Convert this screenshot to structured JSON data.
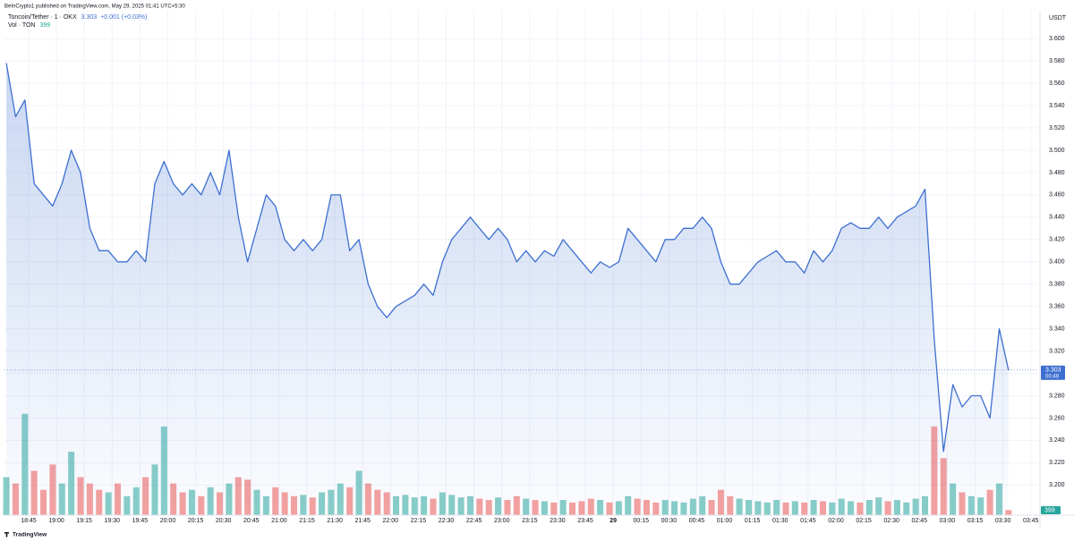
{
  "header": {
    "publisher": "BeInCrypto1 published on TradingView.com, May 29, 2025 01:41 UTC+5:30",
    "logo": "TradingView"
  },
  "chart_data": {
    "type": "area",
    "symbol": "Toncoin/Tether · 1 · OKX",
    "change": "+0.001 (+0.03%)",
    "volume_title": "Vol · TON",
    "currency": "USDT",
    "countdown": "00:49",
    "color": "#3d6fd0",
    "up_color": "#26a69a",
    "down_color": "#ef5350",
    "x": [
      33,
      38,
      43,
      48,
      53,
      58,
      63,
      68,
      73,
      78,
      83,
      88,
      93,
      98,
      103,
      108,
      113,
      118,
      123,
      128,
      133,
      138,
      143,
      148,
      153,
      158,
      163,
      168,
      173,
      178,
      183,
      188,
      193,
      198,
      203,
      208,
      213,
      218,
      223,
      228,
      233,
      238,
      243,
      248,
      253,
      258,
      263,
      268,
      273,
      278,
      283,
      288,
      293,
      298,
      303,
      308,
      313,
      318,
      323,
      328,
      333,
      338,
      343,
      348,
      353,
      358,
      363,
      368,
      373,
      378,
      383,
      388,
      393,
      398,
      403,
      408,
      413,
      418,
      423,
      428,
      433,
      438,
      443,
      448,
      453,
      458,
      463,
      468,
      473,
      478,
      483,
      488,
      493,
      498,
      503,
      508,
      513,
      518,
      523,
      528,
      533,
      538,
      543,
      548,
      553,
      558,
      563,
      568,
      573
    ],
    "values": [
      3.578,
      3.53,
      3.545,
      3.47,
      3.46,
      3.45,
      3.47,
      3.5,
      3.48,
      3.43,
      3.41,
      3.41,
      3.4,
      3.4,
      3.41,
      3.4,
      3.47,
      3.49,
      3.47,
      3.46,
      3.47,
      3.46,
      3.48,
      3.46,
      3.5,
      3.44,
      3.4,
      3.43,
      3.46,
      3.45,
      3.42,
      3.41,
      3.42,
      3.41,
      3.42,
      3.46,
      3.46,
      3.41,
      3.42,
      3.38,
      3.36,
      3.35,
      3.36,
      3.365,
      3.37,
      3.38,
      3.37,
      3.4,
      3.42,
      3.43,
      3.44,
      3.43,
      3.42,
      3.43,
      3.42,
      3.4,
      3.41,
      3.4,
      3.41,
      3.405,
      3.42,
      3.41,
      3.4,
      3.39,
      3.4,
      3.395,
      3.4,
      3.43,
      3.42,
      3.41,
      3.4,
      3.42,
      3.42,
      3.43,
      3.43,
      3.44,
      3.43,
      3.4,
      3.38,
      3.38,
      3.39,
      3.4,
      3.405,
      3.41,
      3.4,
      3.4,
      3.39,
      3.41,
      3.4,
      3.41,
      3.43,
      3.435,
      3.43,
      3.43,
      3.44,
      3.43,
      3.44,
      3.445,
      3.45,
      3.465,
      3.33,
      3.23,
      3.29,
      3.27,
      3.28,
      3.28,
      3.26,
      3.34,
      3.303
    ],
    "volume": [
      3000,
      2500,
      8000,
      3500,
      2000,
      4000,
      2500,
      5000,
      3000,
      2500,
      2000,
      1800,
      2500,
      1500,
      2200,
      3000,
      4000,
      7000,
      2500,
      1800,
      2000,
      1500,
      2200,
      1800,
      2500,
      3000,
      2800,
      2000,
      1500,
      2200,
      1800,
      1500,
      1600,
      1400,
      1800,
      2000,
      2500,
      2200,
      3500,
      2500,
      2000,
      1800,
      1500,
      1600,
      1400,
      1500,
      1300,
      1800,
      1600,
      1400,
      1500,
      1300,
      1200,
      1400,
      1200,
      1500,
      1300,
      1200,
      1100,
      1000,
      1200,
      1000,
      1100,
      1300,
      1200,
      1000,
      1100,
      1500,
      1300,
      1200,
      1000,
      1200,
      1100,
      1000,
      1300,
      1500,
      1200,
      2000,
      1500,
      1300,
      1200,
      1100,
      1000,
      1200,
      1000,
      1100,
      1000,
      1200,
      1100,
      1000,
      1300,
      1100,
      1000,
      1200,
      1400,
      1100,
      1200,
      1000,
      1300,
      1500,
      7000,
      4500,
      2500,
      1800,
      1500,
      1400,
      2000,
      2500,
      399
    ],
    "vlim": [
      0,
      12000
    ],
    "xlim": [
      32,
      589
    ],
    "xticks": [
      {
        "value": 45,
        "label": "18:45"
      },
      {
        "value": 60,
        "label": "19:00"
      },
      {
        "value": 75,
        "label": "19:15"
      },
      {
        "value": 90,
        "label": "19:30"
      },
      {
        "value": 105,
        "label": "19:45"
      },
      {
        "value": 120,
        "label": "20:00"
      },
      {
        "value": 135,
        "label": "20:15"
      },
      {
        "value": 150,
        "label": "20:30"
      },
      {
        "value": 165,
        "label": "20:45"
      },
      {
        "value": 180,
        "label": "21:00"
      },
      {
        "value": 195,
        "label": "21:15"
      },
      {
        "value": 210,
        "label": "21:30"
      },
      {
        "value": 225,
        "label": "21:45"
      },
      {
        "value": 240,
        "label": "22:00"
      },
      {
        "value": 255,
        "label": "22:15"
      },
      {
        "value": 270,
        "label": "22:30"
      },
      {
        "value": 285,
        "label": "22:45"
      },
      {
        "value": 300,
        "label": "23:00"
      },
      {
        "value": 315,
        "label": "23:15"
      },
      {
        "value": 330,
        "label": "23:30"
      },
      {
        "value": 345,
        "label": "23:45"
      },
      {
        "value": 360,
        "label": "29"
      },
      {
        "value": 375,
        "label": "00:15"
      },
      {
        "value": 390,
        "label": "00:30"
      },
      {
        "value": 405,
        "label": "00:45"
      },
      {
        "value": 420,
        "label": "01:00"
      },
      {
        "value": 435,
        "label": "01:15"
      },
      {
        "value": 450,
        "label": "01:30"
      },
      {
        "value": 465,
        "label": "01:45"
      },
      {
        "value": 480,
        "label": "02:00"
      },
      {
        "value": 495,
        "label": "02:15"
      },
      {
        "value": 510,
        "label": "02:30"
      },
      {
        "value": 525,
        "label": "02:45"
      },
      {
        "value": 540,
        "label": "03:00"
      },
      {
        "value": 555,
        "label": "03:15"
      },
      {
        "value": 570,
        "label": "03:30"
      },
      {
        "value": 585,
        "label": "03:45"
      }
    ],
    "ylim": [
      3.173,
      3.625
    ],
    "yticks": [
      {
        "value": 3.2,
        "label": "3.200"
      },
      {
        "value": 3.22,
        "label": "3.220"
      },
      {
        "value": 3.24,
        "label": "3.240"
      },
      {
        "value": 3.26,
        "label": "3.260"
      },
      {
        "value": 3.28,
        "label": "3.280"
      },
      {
        "value": 3.3,
        "label": "3.300"
      },
      {
        "value": 3.32,
        "label": "3.320"
      },
      {
        "value": 3.34,
        "label": "3.340"
      },
      {
        "value": 3.36,
        "label": "3.360"
      },
      {
        "value": 3.38,
        "label": "3.380"
      },
      {
        "value": 3.4,
        "label": "3.400"
      },
      {
        "value": 3.42,
        "label": "3.420"
      },
      {
        "value": 3.44,
        "label": "3.440"
      },
      {
        "value": 3.46,
        "label": "3.460"
      },
      {
        "value": 3.48,
        "label": "3.480"
      },
      {
        "value": 3.5,
        "label": "3.500"
      },
      {
        "value": 3.52,
        "label": "3.520"
      },
      {
        "value": 3.54,
        "label": "3.540"
      },
      {
        "value": 3.56,
        "label": "3.560"
      },
      {
        "value": 3.58,
        "label": "3.580"
      },
      {
        "value": 3.6,
        "label": "3.600"
      }
    ],
    "grid": true
  }
}
